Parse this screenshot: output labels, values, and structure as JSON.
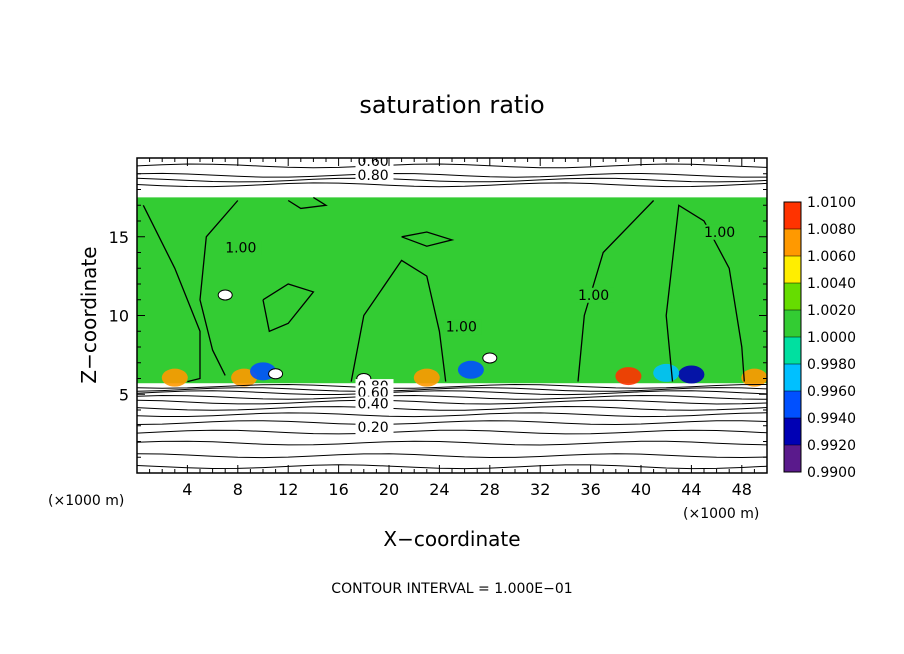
{
  "chart_data": {
    "type": "heatmap",
    "title": "saturation ratio",
    "xlabel": "X−coordinate",
    "ylabel": "Z−coordinate",
    "x_unit": "(×1000 m)",
    "y_unit": "(×1000 m)",
    "xlim": [
      0,
      50
    ],
    "ylim": [
      0,
      20
    ],
    "x_ticks": [
      4,
      8,
      12,
      16,
      20,
      24,
      28,
      32,
      36,
      40,
      44,
      48
    ],
    "y_ticks": [
      5,
      10,
      15
    ],
    "footer": "CONTOUR INTERVAL = 1.000E−01",
    "colorbar": {
      "levels": [
        "0.9900",
        "0.9920",
        "0.9940",
        "0.9960",
        "0.9980",
        "1.0000",
        "1.0020",
        "1.0040",
        "1.0060",
        "1.0080",
        "1.0100"
      ],
      "colors": [
        "#5a1a8c",
        "#0000b4",
        "#0050ff",
        "#00c0ff",
        "#00e0a0",
        "#33cc33",
        "#66dd00",
        "#ffee00",
        "#ff9900",
        "#ff3300",
        "#ff9999"
      ]
    },
    "layers": {
      "saturated_layer_z": [
        5.7,
        17.5
      ],
      "background_value": 1.0
    },
    "contour_labels": [
      {
        "text": "0.60",
        "x": 17.5,
        "z": 19.5
      },
      {
        "text": "0.80",
        "x": 17.5,
        "z": 18.6
      },
      {
        "text": "1.00",
        "x": 7,
        "z": 14
      },
      {
        "text": "1.00",
        "x": 24.5,
        "z": 9
      },
      {
        "text": "1.00",
        "x": 35,
        "z": 11
      },
      {
        "text": "1.00",
        "x": 45,
        "z": 15
      },
      {
        "text": "0.80",
        "x": 17.5,
        "z": 5.2
      },
      {
        "text": "0.60",
        "x": 17.5,
        "z": 4.8
      },
      {
        "text": "0.40",
        "x": 17.5,
        "z": 4.1
      },
      {
        "text": "0.20",
        "x": 17.5,
        "z": 2.6
      }
    ],
    "hotspots": [
      {
        "x": 3,
        "z": 5.8,
        "value": 1.006
      },
      {
        "x": 8.5,
        "z": 5.8,
        "value": 1.006
      },
      {
        "x": 23,
        "z": 5.8,
        "value": 1.006
      },
      {
        "x": 39,
        "z": 5.9,
        "value": 1.008
      },
      {
        "x": 49,
        "z": 5.8,
        "value": 1.006
      },
      {
        "x": 10,
        "z": 6.2,
        "value": 0.994
      },
      {
        "x": 26.5,
        "z": 6.3,
        "value": 0.994
      },
      {
        "x": 44,
        "z": 6.0,
        "value": 0.992
      },
      {
        "x": 42,
        "z": 6.1,
        "value": 0.996
      }
    ]
  }
}
